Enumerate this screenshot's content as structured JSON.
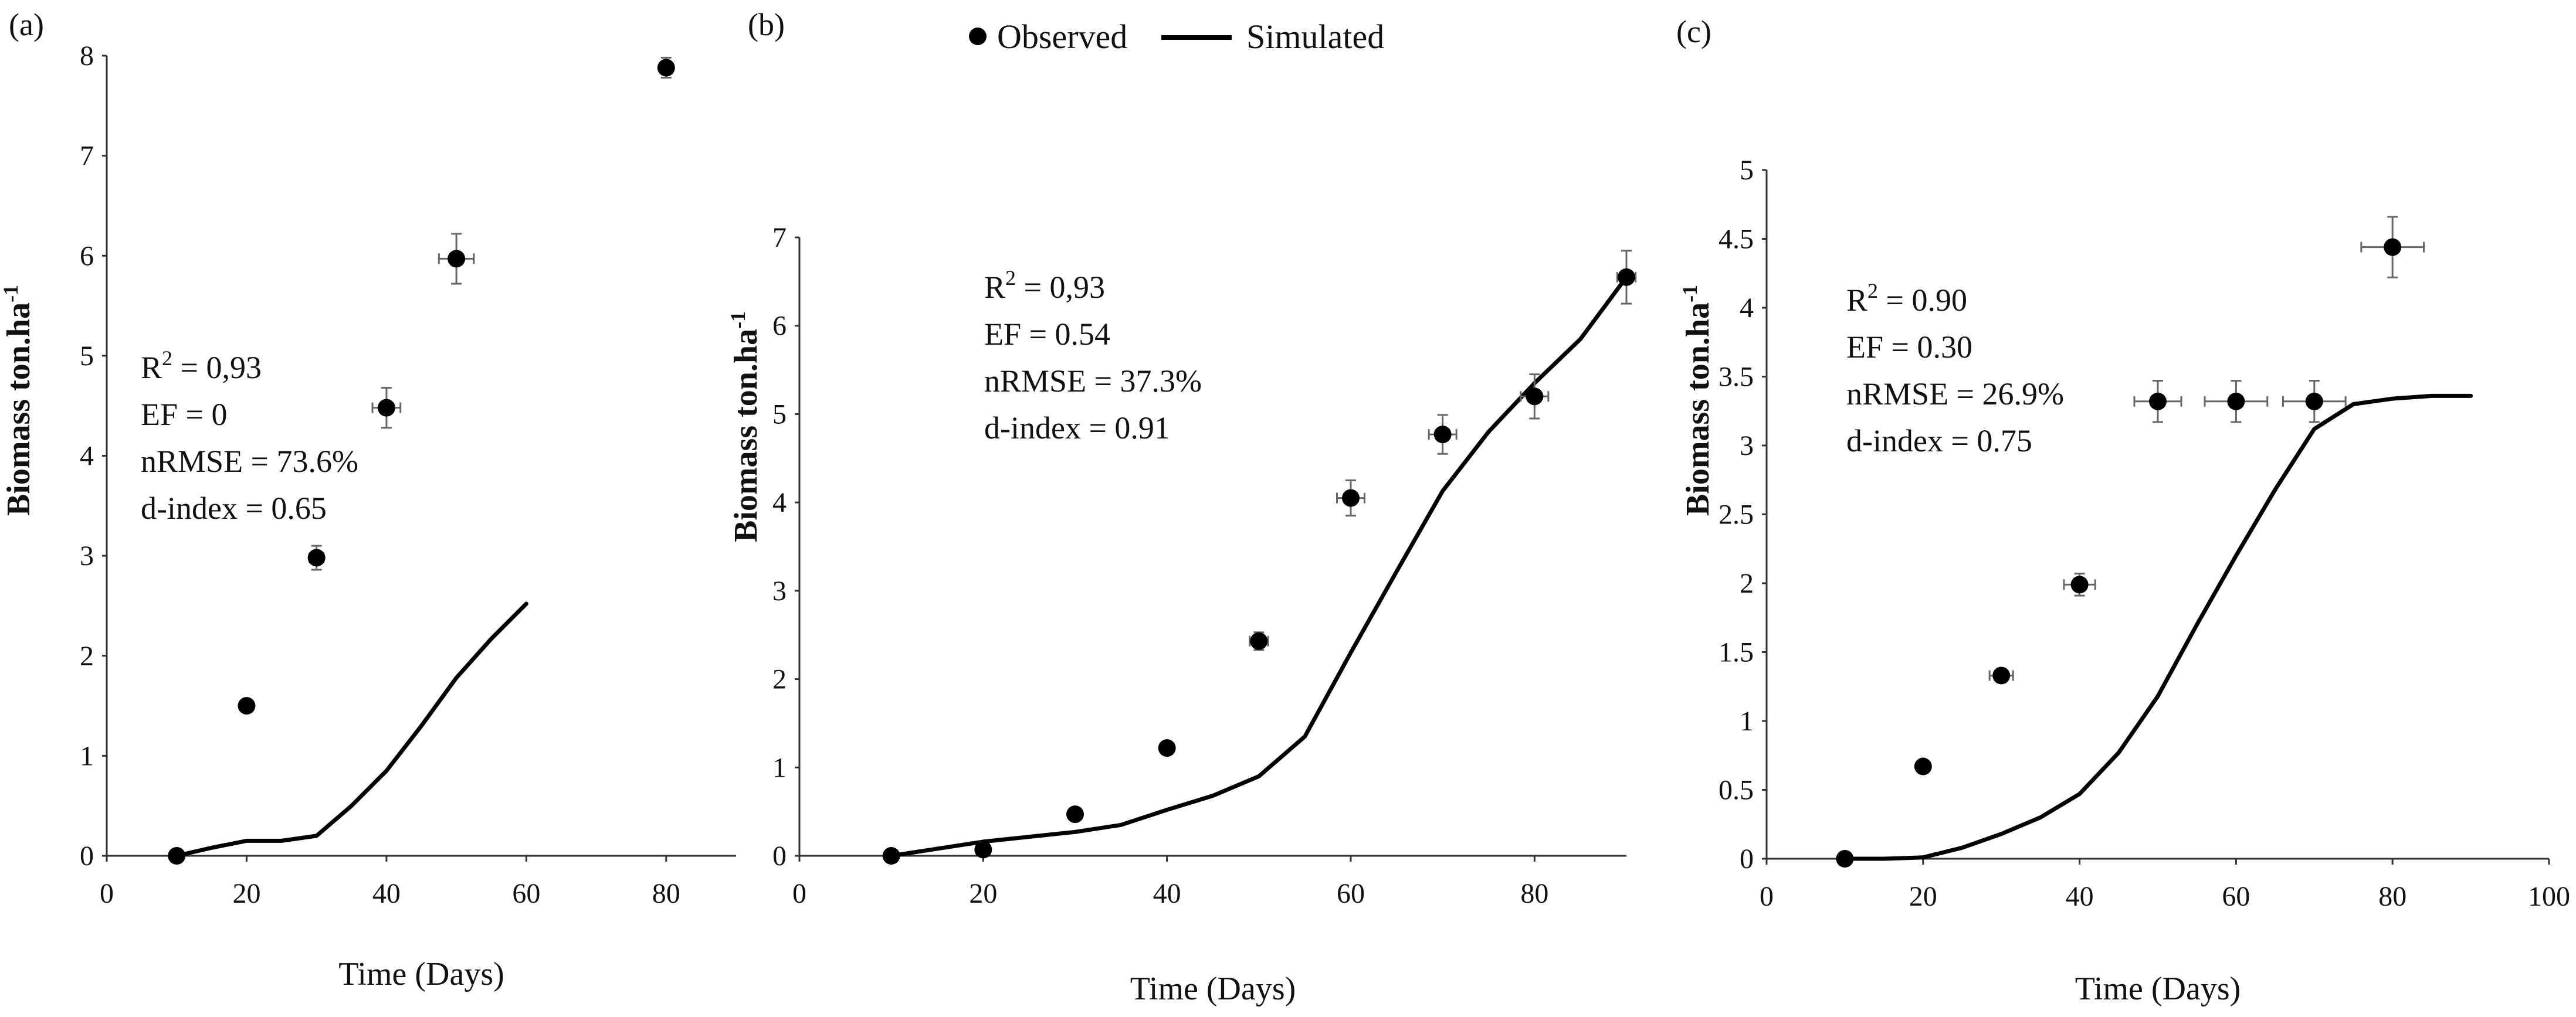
{
  "legend": {
    "observed": "Observed",
    "simulated": "Simulated"
  },
  "chart_data": [
    {
      "type": "scatter",
      "panel": "(a)",
      "xlabel": "Time (Days)",
      "ylabel_main": "Biomass ton.ha",
      "ylabel_sup": "-1",
      "xlim": [
        0,
        90
      ],
      "ylim": [
        0,
        8
      ],
      "xticks": [
        0,
        20,
        40,
        60,
        80
      ],
      "xtick_labels": [
        "0",
        "20",
        "40",
        "60",
        "80"
      ],
      "yticks": [
        0,
        1,
        2,
        3,
        4,
        5,
        6,
        7,
        8
      ],
      "ytick_labels": [
        "0",
        "1",
        "2",
        "3",
        "4",
        "5",
        "6",
        "7",
        "8"
      ],
      "series": [
        {
          "name": "Observed",
          "x": [
            10,
            20,
            30,
            40,
            50,
            80
          ],
          "y": [
            0,
            1.5,
            2.98,
            4.48,
            5.97,
            7.88
          ],
          "xerr": [
            0,
            0,
            1,
            2,
            2.5,
            0
          ],
          "yerr": [
            0,
            0.05,
            0.12,
            0.2,
            0.25,
            0.1
          ]
        },
        {
          "name": "Simulated",
          "x": [
            10,
            15,
            20,
            25,
            30,
            35,
            40,
            45,
            50,
            55,
            60
          ],
          "y": [
            0,
            0.08,
            0.15,
            0.15,
            0.2,
            0.5,
            0.85,
            1.3,
            1.78,
            2.17,
            2.52
          ]
        }
      ],
      "stats": {
        "r2_label": "R",
        "r2_sup": "2",
        "r2_value": " = 0,93",
        "ef": "EF = 0",
        "nrmse": "nRMSE = 73.6%",
        "dindex": "d-index = 0.65"
      }
    },
    {
      "type": "scatter",
      "panel": "(b)",
      "xlabel": "Time (Days)",
      "ylabel_main": "Biomass ton.ha",
      "ylabel_sup": "-1",
      "xlim": [
        0,
        90
      ],
      "ylim": [
        0,
        7
      ],
      "xticks": [
        0,
        20,
        40,
        60,
        80
      ],
      "xtick_labels": [
        "0",
        "20",
        "40",
        "60",
        "80"
      ],
      "yticks": [
        0,
        1,
        2,
        3,
        4,
        5,
        6,
        7
      ],
      "ytick_labels": [
        "0",
        "1",
        "2",
        "3",
        "4",
        "5",
        "6",
        "7"
      ],
      "series": [
        {
          "name": "Observed",
          "x": [
            10,
            20,
            30,
            40,
            50,
            60,
            70,
            80,
            90
          ],
          "y": [
            0,
            0.07,
            0.47,
            1.22,
            2.43,
            4.05,
            4.77,
            5.2,
            6.55
          ],
          "xerr": [
            0,
            0,
            0,
            0,
            1,
            1.5,
            1.5,
            1.5,
            1
          ],
          "yerr": [
            0,
            0.03,
            0.05,
            0.07,
            0.1,
            0.2,
            0.22,
            0.25,
            0.3
          ]
        },
        {
          "name": "Simulated",
          "x": [
            10,
            20,
            30,
            35,
            40,
            45,
            50,
            55,
            60,
            65,
            70,
            75,
            80,
            85,
            90
          ],
          "y": [
            0,
            0.16,
            0.27,
            0.35,
            0.52,
            0.68,
            0.9,
            1.35,
            2.3,
            3.22,
            4.13,
            4.8,
            5.35,
            5.85,
            6.55
          ]
        }
      ],
      "stats": {
        "r2_label": "R",
        "r2_sup": "2",
        "r2_value": " = 0,93",
        "ef": "EF = 0.54",
        "nrmse": "nRMSE = 37.3%",
        "dindex": "d-index = 0.91"
      }
    },
    {
      "type": "scatter",
      "panel": "(c)",
      "xlabel": "Time (Days)",
      "ylabel_main": "Biomass ton.ha",
      "ylabel_sup": "-1",
      "xlim": [
        0,
        100
      ],
      "ylim": [
        0,
        5
      ],
      "xticks": [
        0,
        20,
        40,
        60,
        80,
        100
      ],
      "xtick_labels": [
        "0",
        "20",
        "40",
        "60",
        "80",
        "100"
      ],
      "yticks": [
        0,
        0.5,
        1,
        1.5,
        2,
        2.5,
        3,
        3.5,
        4,
        4.5,
        5
      ],
      "ytick_labels": [
        "0",
        "0.5",
        "1",
        "1.5",
        "2",
        "2.5",
        "3",
        "3.5",
        "4",
        "4.5",
        "5"
      ],
      "series": [
        {
          "name": "Observed",
          "x": [
            10,
            20,
            30,
            40,
            50,
            60,
            70,
            80
          ],
          "y": [
            0,
            0.67,
            1.33,
            1.99,
            3.32,
            3.32,
            3.32,
            4.44
          ],
          "xerr": [
            0,
            0,
            1.5,
            2,
            3,
            4,
            4,
            4
          ],
          "yerr": [
            0,
            0.04,
            0.05,
            0.08,
            0.15,
            0.15,
            0.15,
            0.22
          ]
        },
        {
          "name": "Simulated",
          "x": [
            10,
            15,
            20,
            25,
            30,
            35,
            40,
            45,
            50,
            55,
            60,
            65,
            70,
            75,
            80,
            85,
            90
          ],
          "y": [
            0,
            0,
            0.01,
            0.08,
            0.18,
            0.3,
            0.47,
            0.77,
            1.18,
            1.7,
            2.2,
            2.68,
            3.12,
            3.3,
            3.34,
            3.36,
            3.36
          ]
        }
      ],
      "stats": {
        "r2_label": "R",
        "r2_sup": "2",
        "r2_value": " = 0.90",
        "ef": "EF = 0.30",
        "nrmse": "nRMSE = 26.9%",
        "dindex": "d-index = 0.75"
      }
    }
  ]
}
